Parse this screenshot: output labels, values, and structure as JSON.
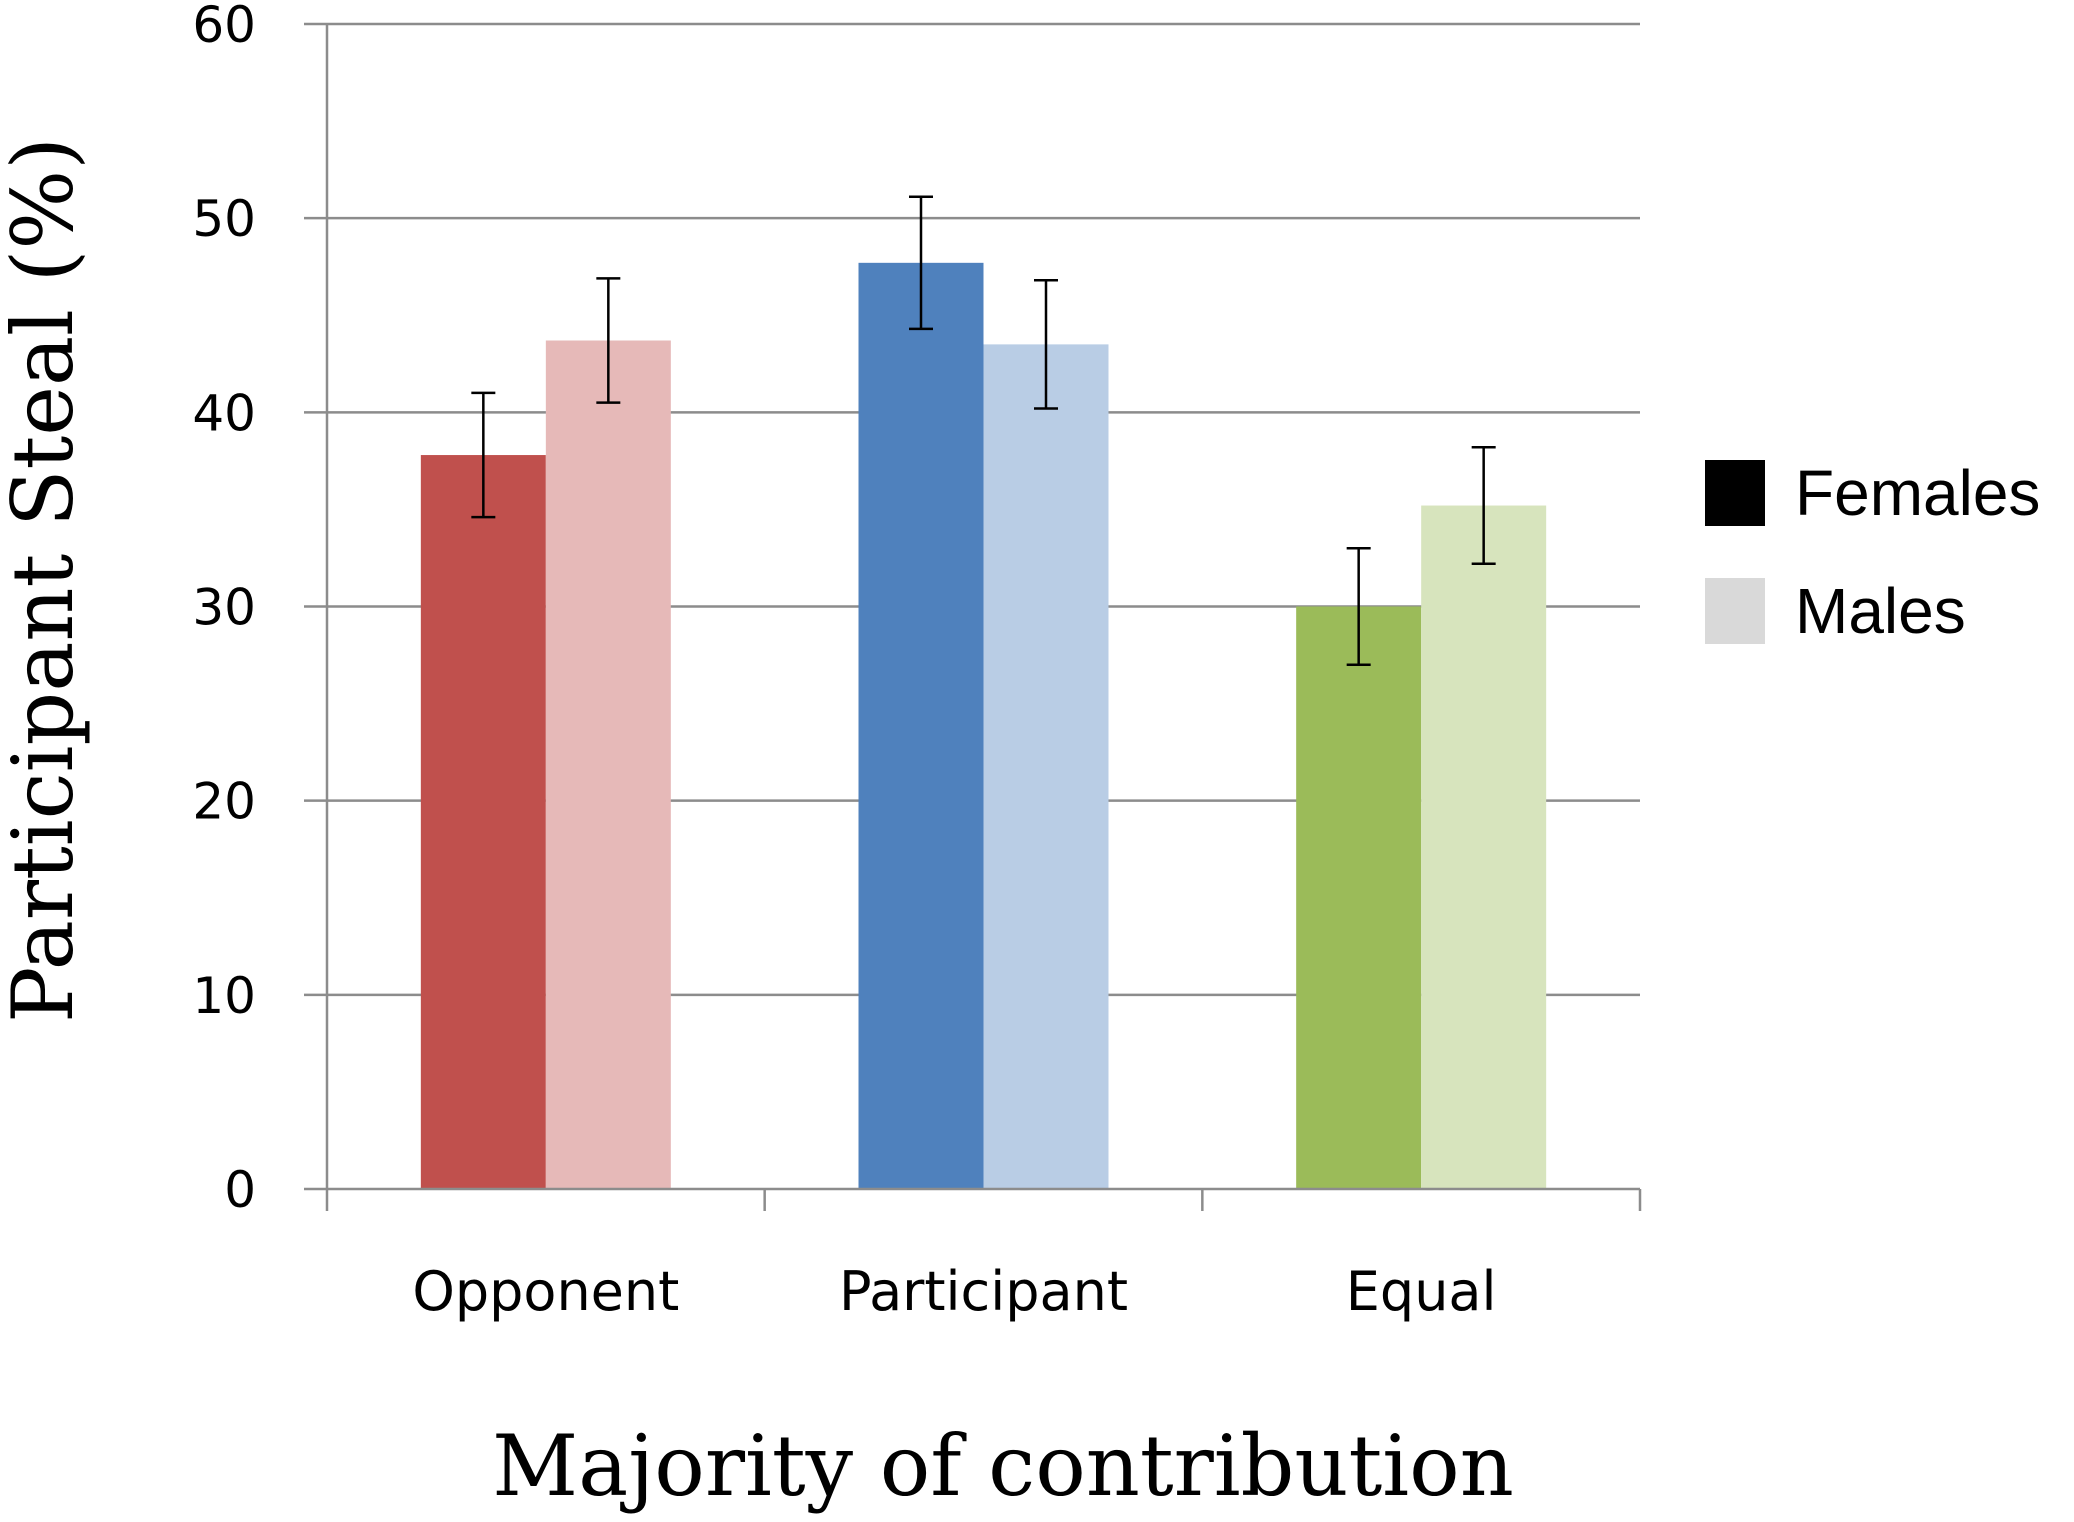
{
  "chart_data": {
    "type": "bar",
    "title": "",
    "xlabel": "Majority of contribution",
    "ylabel": "Participant Steal (%)",
    "ylim": [
      0,
      60
    ],
    "yticks": [
      "0",
      "10",
      "20",
      "30",
      "40",
      "50",
      "60"
    ],
    "grid": true,
    "legend_position": "right",
    "categories": [
      "Opponent",
      "Participant",
      "Equal"
    ],
    "series": [
      {
        "name": "Females",
        "values": [
          37.8,
          47.7,
          30.0
        ],
        "error": [
          3.2,
          3.4,
          3.0
        ],
        "colors": [
          "#c0504d",
          "#4f81bd",
          "#9bbb59"
        ],
        "legend_color": "#000000"
      },
      {
        "name": "Males",
        "values": [
          43.7,
          43.5,
          35.2
        ],
        "error": [
          3.2,
          3.3,
          3.0
        ],
        "colors": [
          "#e6b9b8",
          "#b9cde5",
          "#d7e4bd"
        ],
        "legend_color": "#d9d9d9"
      }
    ]
  }
}
